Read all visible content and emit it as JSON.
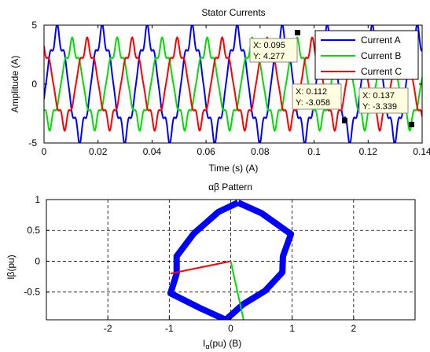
{
  "chart_data": [
    {
      "type": "line",
      "title": "Stator Currents",
      "xlabel": "Time (s)  (A)",
      "ylabel": "Amplitude (A)",
      "xlim": [
        0,
        0.14
      ],
      "ylim": [
        -5,
        5
      ],
      "x_ticks": [
        "0",
        "0.02",
        "0.04",
        "0.06",
        "0.08",
        "0.1",
        "0.12",
        "0.14"
      ],
      "y_ticks": [
        "5",
        "0",
        "-5"
      ],
      "grid": false,
      "legend_position": "top-right",
      "series": [
        {
          "name": "Current A",
          "color": "#0000ff",
          "amplitude": 4.25,
          "frequency_hz": 60,
          "phase_deg": -15
        },
        {
          "name": "Current B",
          "color": "#00dd00",
          "amplitude": 3.3,
          "frequency_hz": 60,
          "phase_deg": -135
        },
        {
          "name": "Current C",
          "color": "#ff0000",
          "amplitude": 3.3,
          "frequency_hz": 60,
          "phase_deg": 105
        }
      ],
      "data_tips": [
        {
          "x": 0.095,
          "y": 4.277,
          "lines": [
            "X: 0.095",
            "Y: 4.277"
          ]
        },
        {
          "x": 0.112,
          "y": -3.058,
          "lines": [
            "X: 0.112",
            "Y: -3.058"
          ]
        },
        {
          "x": 0.137,
          "y": -3.339,
          "lines": [
            "X: 0.137",
            "Y: -3.339"
          ]
        }
      ]
    },
    {
      "type": "line",
      "title": "αβ Pattern",
      "xlabel_main": "I",
      "xlabel_sub": "α",
      "xlabel_rest": "(pu)    (B)",
      "ylabel": "Iβ(pu)",
      "xlim": [
        -3,
        3
      ],
      "ylim": [
        -0.95,
        1
      ],
      "x_ticks": [
        "-2",
        "-1",
        "0",
        "1",
        "2"
      ],
      "y_ticks": [
        "1",
        "0.5",
        "0",
        "-0.5"
      ],
      "grid": true,
      "series": [
        {
          "name": "",
          "color": "#0000ff",
          "points": [
            [
              0.12,
              0.95
            ],
            [
              0.5,
              0.78
            ],
            [
              0.98,
              0.44
            ],
            [
              0.85,
              0.08
            ],
            [
              0.84,
              -0.18
            ],
            [
              0.56,
              -0.48
            ],
            [
              0.2,
              -0.7
            ],
            [
              -0.08,
              -0.95
            ],
            [
              -0.5,
              -0.76
            ],
            [
              -0.98,
              -0.52
            ],
            [
              -0.88,
              -0.2
            ],
            [
              -0.88,
              0.08
            ],
            [
              -0.6,
              0.45
            ],
            [
              -0.2,
              0.8
            ],
            [
              0.12,
              0.95
            ]
          ]
        },
        {
          "name": "",
          "color": "#ff0000",
          "points": [
            [
              0,
              0
            ],
            [
              -0.98,
              -0.2
            ]
          ]
        },
        {
          "name": "",
          "color": "#00dd00",
          "points": [
            [
              0,
              0
            ],
            [
              0.22,
              -1.0
            ]
          ]
        }
      ]
    }
  ]
}
